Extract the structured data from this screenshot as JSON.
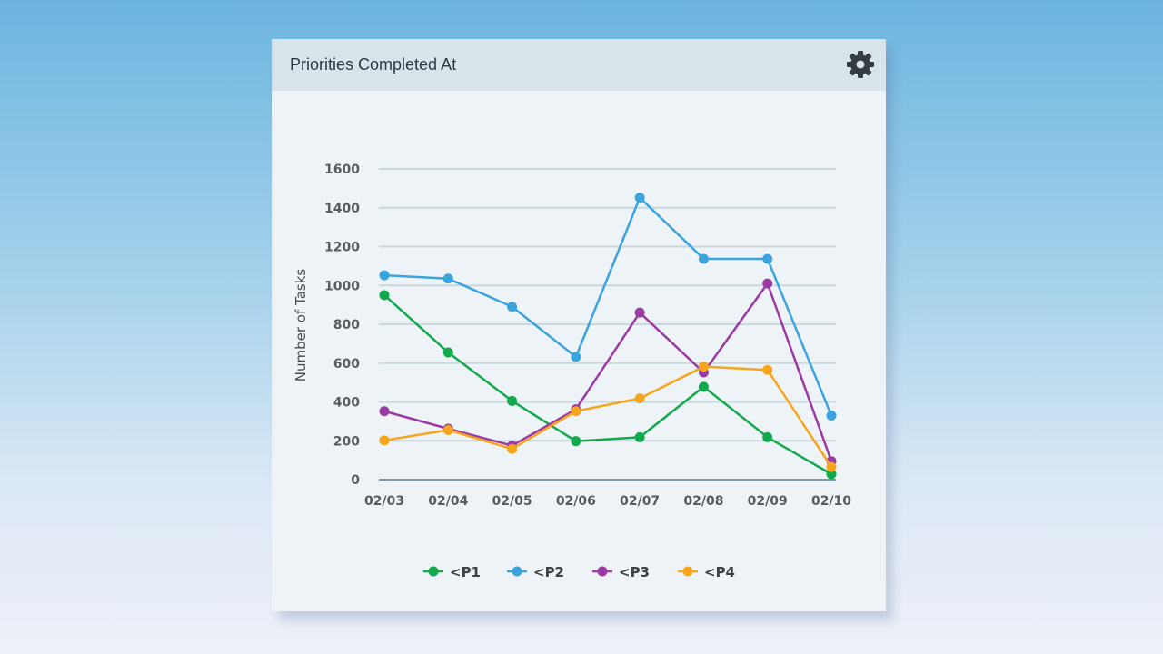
{
  "card": {
    "title": "Priorities Completed At",
    "settings_icon": "gear-icon"
  },
  "chart_data": {
    "type": "line",
    "title": "",
    "xlabel": "",
    "ylabel": "Number of Tasks",
    "x": [
      "02/03",
      "02/04",
      "02/05",
      "02/06",
      "02/07",
      "02/08",
      "02/09",
      "02/10"
    ],
    "ylim": [
      0,
      1600
    ],
    "yticks": [
      0,
      200,
      400,
      600,
      800,
      1000,
      1200,
      1400,
      1600
    ],
    "grid": true,
    "legend_position": "bottom",
    "series": [
      {
        "name": "<P1",
        "color": "#12a94d",
        "values": [
          950,
          655,
          405,
          198,
          218,
          478,
          218,
          28
        ]
      },
      {
        "name": "<P2",
        "color": "#3ba4dc",
        "values": [
          1052,
          1035,
          890,
          632,
          1452,
          1137,
          1137,
          330
        ]
      },
      {
        "name": "<P3",
        "color": "#9b3aa3",
        "values": [
          352,
          262,
          175,
          362,
          860,
          552,
          1010,
          95
        ]
      },
      {
        "name": "<P4",
        "color": "#f7a51d",
        "values": [
          202,
          255,
          158,
          352,
          418,
          582,
          565,
          65
        ]
      }
    ]
  }
}
